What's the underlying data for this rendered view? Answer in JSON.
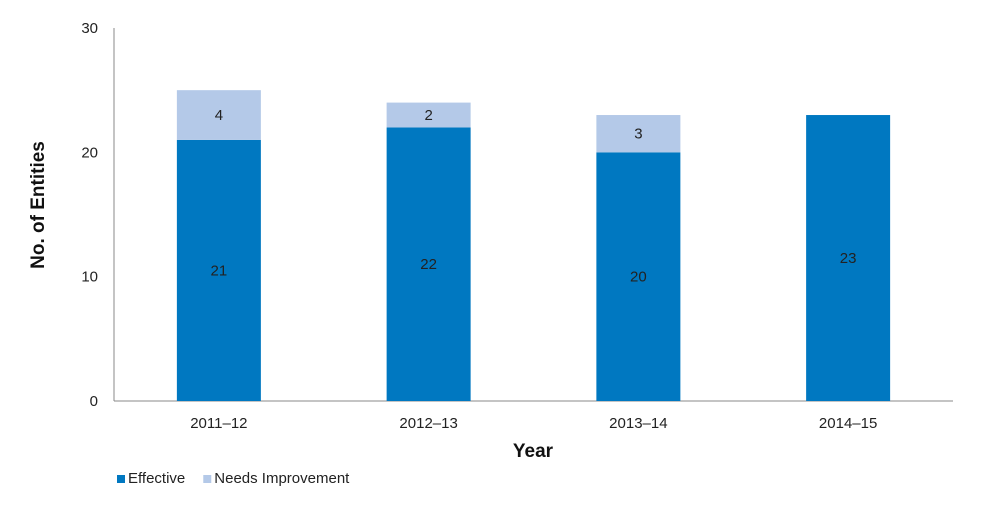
{
  "colors": {
    "effective": "#0078C1",
    "needs_improvement": "#B4C9E8",
    "axis": "#888888"
  },
  "chart_data": {
    "type": "bar",
    "stacked": true,
    "categories": [
      "2011–12",
      "2012–13",
      "2013–14",
      "2014–15"
    ],
    "series": [
      {
        "name": "Effective",
        "values": [
          21,
          22,
          20,
          23
        ]
      },
      {
        "name": "Needs Improvement",
        "values": [
          4,
          2,
          3,
          0
        ]
      }
    ],
    "data_labels": {
      "Effective": [
        "21",
        "22",
        "20",
        "23"
      ],
      "Needs Improvement": [
        "4",
        "2",
        "3",
        ""
      ]
    },
    "xlabel": "Year",
    "ylabel": "No. of Entities",
    "ylim": [
      0,
      30
    ],
    "yticks": [
      0,
      10,
      20,
      30
    ],
    "grid": false,
    "legend_position": "bottom-left"
  }
}
